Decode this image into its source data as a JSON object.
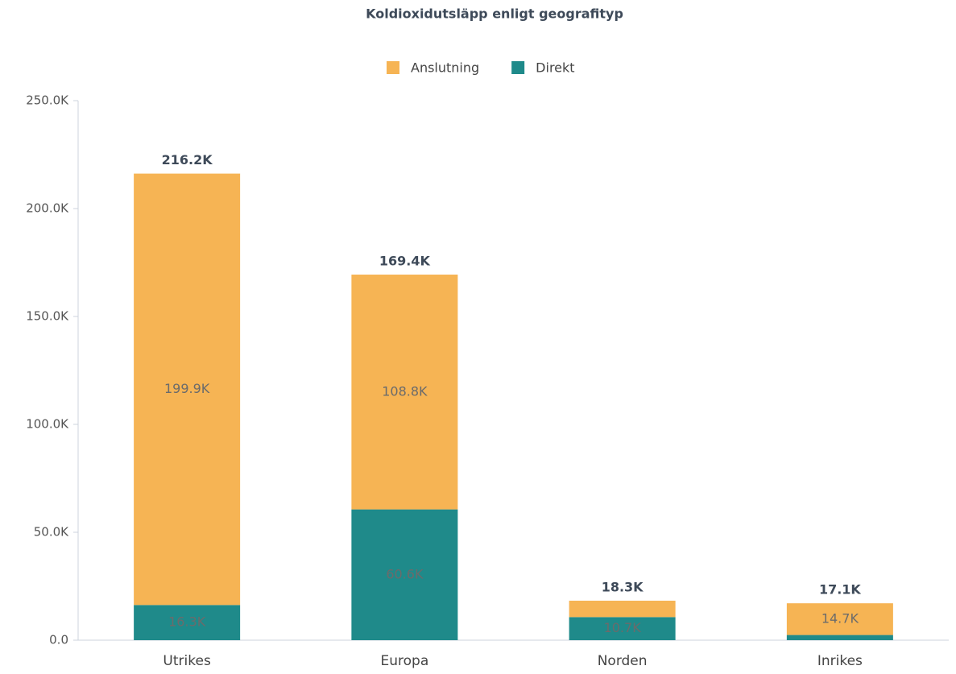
{
  "chart_data": {
    "type": "stacked-bar",
    "title": "Koldioxidutsläpp enligt geografityp",
    "categories": [
      "Utrikes",
      "Europa",
      "Norden",
      "Inrikes"
    ],
    "series": [
      {
        "name": "Direkt",
        "color": "#1f8a8a",
        "values": [
          16300,
          60600,
          10700,
          2400
        ],
        "value_labels": [
          "16.3K",
          "60.6K",
          "10.7K",
          null
        ]
      },
      {
        "name": "Anslutning",
        "color": "#f6b454",
        "values": [
          199900,
          108800,
          7600,
          14700
        ],
        "value_labels": [
          "199.9K",
          "108.8K",
          null,
          "14.7K"
        ]
      }
    ],
    "totals": [
      216200,
      169400,
      18300,
      17100
    ],
    "total_labels": [
      "216.2K",
      "169.4K",
      "18.3K",
      "17.1K"
    ],
    "ylim": [
      0,
      250000
    ],
    "yticks": [
      {
        "value": 0,
        "label": "0.0"
      },
      {
        "value": 50000,
        "label": "50.0K"
      },
      {
        "value": 100000,
        "label": "100.0K"
      },
      {
        "value": 150000,
        "label": "150.0K"
      },
      {
        "value": 200000,
        "label": "200.0K"
      },
      {
        "value": 250000,
        "label": "250.0K"
      }
    ],
    "legend_order": [
      1,
      0
    ]
  }
}
